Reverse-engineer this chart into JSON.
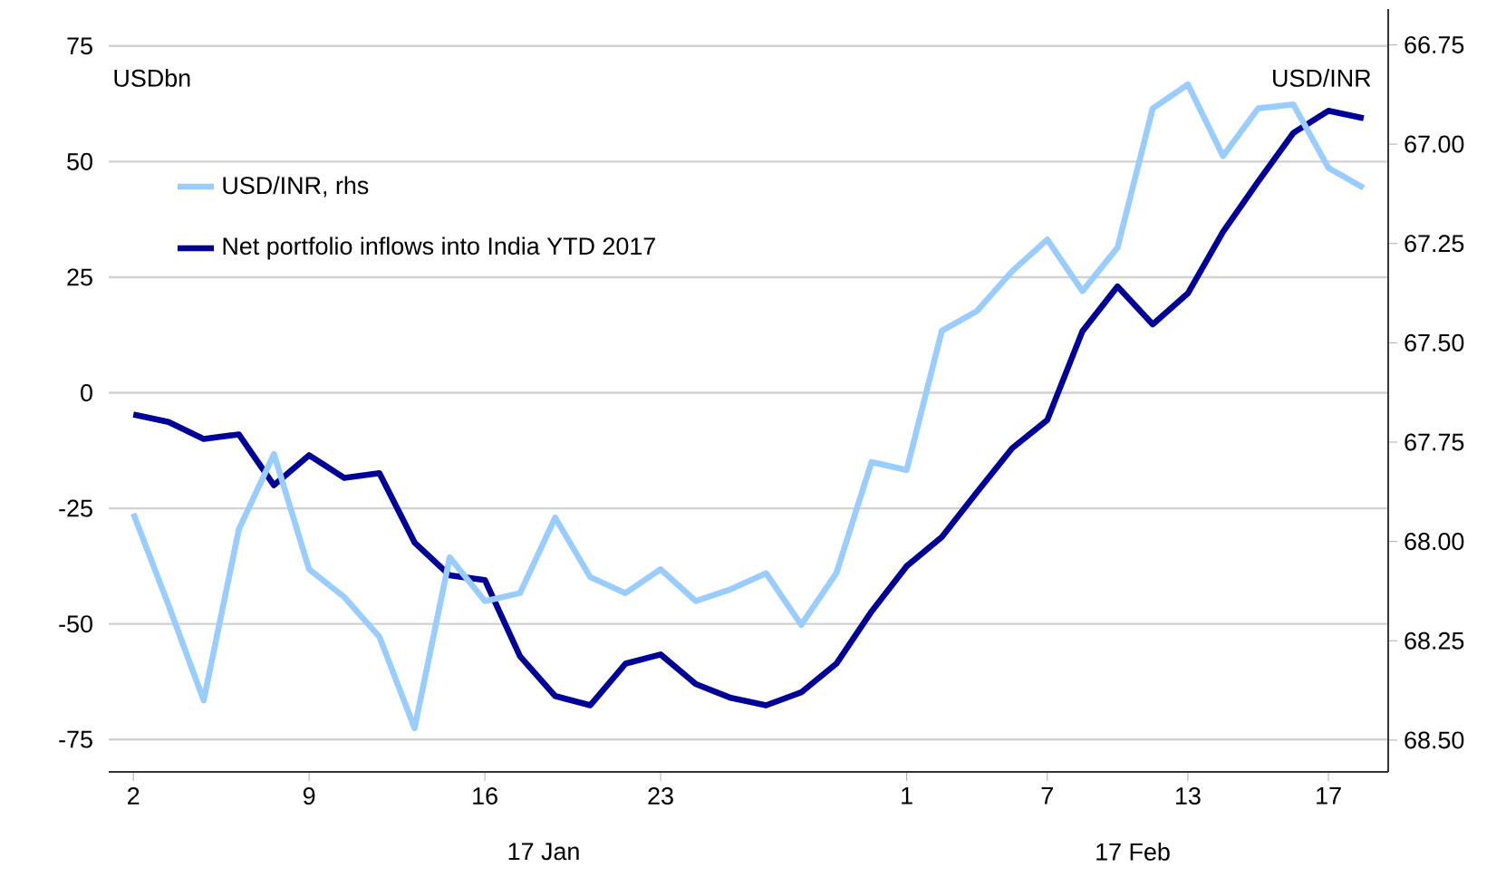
{
  "chart_data": {
    "type": "line",
    "ylabel": "USDbn",
    "y2label": "USD/INR",
    "categories": [
      "2",
      null,
      null,
      null,
      null,
      "9",
      null,
      null,
      null,
      null,
      "16",
      null,
      null,
      null,
      null,
      "23",
      null,
      null,
      null,
      null,
      null,
      null,
      "1",
      null,
      null,
      null,
      "7",
      null,
      null,
      null,
      "13",
      null,
      null,
      null,
      "17",
      null
    ],
    "series": [
      {
        "name": "USD/INR, rhs",
        "color": "#99ccff",
        "axis": "y2",
        "values": [
          67.93,
          68.16,
          68.4,
          67.97,
          67.78,
          68.07,
          68.14,
          68.24,
          68.47,
          68.04,
          68.15,
          68.13,
          67.94,
          68.09,
          68.13,
          68.07,
          68.15,
          68.12,
          68.08,
          68.21,
          68.08,
          67.8,
          67.82,
          67.47,
          67.42,
          67.32,
          67.24,
          67.37,
          67.26,
          66.91,
          66.85,
          67.03,
          66.91,
          66.9,
          67.06,
          67.11
        ]
      },
      {
        "name": "Net portfolio inflows into India YTD 2017",
        "color": "#000099",
        "values": [
          -4.7,
          -6.3,
          -10,
          -9,
          -20,
          -13.5,
          -18.4,
          -17.4,
          -32.4,
          -39.5,
          -40.5,
          -57,
          -65.6,
          -67.6,
          -58.6,
          -56.6,
          -63,
          -66,
          -67.6,
          -64.8,
          -58.6,
          -47.3,
          -37.5,
          -31.2,
          -21.5,
          -12,
          -5.9,
          13.3,
          23,
          14.8,
          21.5,
          34.8,
          45.7,
          56.2,
          61,
          59.4
        ]
      }
    ],
    "ylim": [
      -82,
      83
    ],
    "yticks": [
      -75,
      -50,
      -25,
      0,
      25,
      50,
      75
    ],
    "y2lim": [
      68.58,
      66.66
    ],
    "y2ticks": [
      {
        "value": 66.75,
        "label": "66.75"
      },
      {
        "value": 67,
        "label": "67.00"
      },
      {
        "value": 67.25,
        "label": "67.25"
      },
      {
        "value": 67.5,
        "label": "67.50"
      },
      {
        "value": 67.75,
        "label": "67.75"
      },
      {
        "value": 68,
        "label": "68.00"
      },
      {
        "value": 68.25,
        "label": "68.25"
      },
      {
        "value": 68.5,
        "label": "68.50"
      }
    ],
    "grid": "y",
    "legend": "top left",
    "annotations": [
      "17 Jan",
      "17 Feb"
    ]
  }
}
